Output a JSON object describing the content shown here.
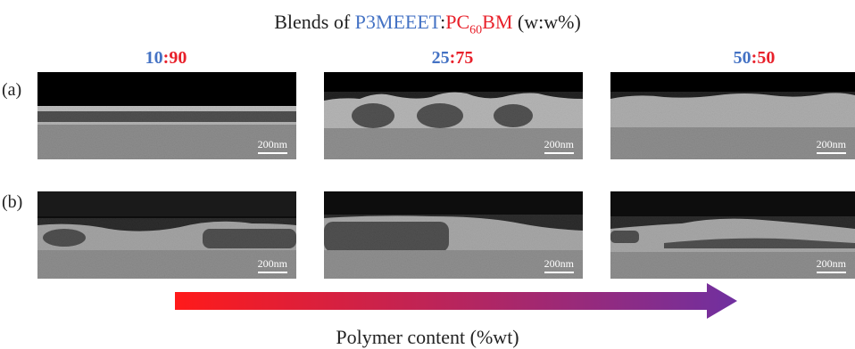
{
  "title": {
    "prefix": "Blends of ",
    "polymer": "P3MEEET",
    "sep": ":",
    "fullerene_a": "PC",
    "fullerene_sub": "60",
    "fullerene_b": "BM",
    "units": " (w:w%)"
  },
  "ratios": [
    {
      "p": "10",
      "sep": ":",
      "f": "90"
    },
    {
      "p": "25",
      "sep": ":",
      "f": "75"
    },
    {
      "p": "50",
      "sep": ":",
      "f": "50"
    }
  ],
  "rows": [
    "(a)",
    "(b)"
  ],
  "scale_bar": "200nm",
  "arrow": {
    "caption": "Polymer content (%wt)",
    "color_start": "#ff1a1a",
    "color_end": "#7030a0"
  },
  "colors": {
    "polymer": "#4472c4",
    "fullerene": "#e8202a"
  }
}
